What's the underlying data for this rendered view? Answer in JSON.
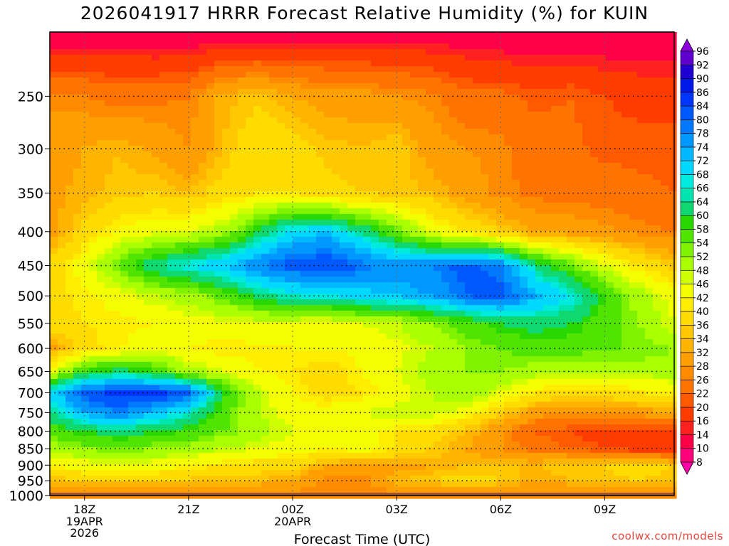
{
  "title": "2026041917 HRRR Forecast Relative Humidity (%) for KUIN",
  "credit": "coolwx.com/models",
  "chart_data": {
    "type": "heatmap",
    "title": "2026041917 HRRR Forecast Relative Humidity (%) for KUIN",
    "xlabel": "Forecast Time (UTC)",
    "ylabel": "",
    "x_hours": [
      17,
      18,
      19,
      20,
      21,
      22,
      23,
      0,
      1,
      2,
      3,
      4,
      5,
      6,
      7,
      8,
      9,
      10,
      11
    ],
    "x_ticks": [
      {
        "hour": 18,
        "label": "18Z",
        "sub": [
          "19APR",
          "2026"
        ]
      },
      {
        "hour": 21,
        "label": "21Z",
        "sub": []
      },
      {
        "hour": 24,
        "label": "00Z",
        "sub": [
          "20APR"
        ]
      },
      {
        "hour": 27,
        "label": "03Z",
        "sub": []
      },
      {
        "hour": 30,
        "label": "06Z",
        "sub": []
      },
      {
        "hour": 33,
        "label": "09Z",
        "sub": []
      }
    ],
    "xlim": [
      17,
      35
    ],
    "y_levels": [
      200,
      250,
      300,
      350,
      400,
      450,
      500,
      550,
      600,
      650,
      700,
      750,
      800,
      850,
      900,
      950,
      1000
    ],
    "y_ticks": [
      250,
      300,
      350,
      400,
      450,
      500,
      550,
      600,
      650,
      700,
      750,
      800,
      850,
      900,
      950,
      1000
    ],
    "ylim": [
      200,
      1000
    ],
    "y_scale": "log",
    "grid": true,
    "ground_level_hpa": 990,
    "values": [
      [
        10,
        10,
        11,
        10,
        10,
        10,
        10,
        10,
        11,
        11,
        11,
        11,
        11,
        10,
        10,
        10,
        10,
        10,
        10
      ],
      [
        27,
        26,
        24,
        25,
        26,
        33,
        35,
        32,
        30,
        30,
        28,
        27,
        23,
        23,
        21,
        22,
        20,
        19,
        19
      ],
      [
        30,
        32,
        34,
        31,
        28,
        34,
        40,
        38,
        35,
        34,
        36,
        30,
        28,
        27,
        24,
        23,
        21,
        21,
        21
      ],
      [
        31,
        33,
        35,
        36,
        34,
        38,
        40,
        40,
        37,
        36,
        35,
        34,
        30,
        27,
        25,
        25,
        24,
        23,
        22
      ],
      [
        30,
        37,
        43,
        45,
        46,
        50,
        60,
        70,
        72,
        64,
        55,
        45,
        40,
        36,
        31,
        30,
        29,
        27,
        26
      ],
      [
        37,
        45,
        55,
        64,
        68,
        72,
        78,
        82,
        84,
        80,
        76,
        78,
        82,
        78,
        64,
        55,
        46,
        40,
        35
      ],
      [
        38,
        41,
        44,
        48,
        50,
        55,
        62,
        66,
        68,
        70,
        72,
        74,
        80,
        82,
        74,
        68,
        58,
        50,
        44
      ],
      [
        38,
        40,
        41,
        42,
        44,
        45,
        46,
        45,
        44,
        46,
        48,
        52,
        56,
        60,
        62,
        60,
        56,
        52,
        46
      ],
      [
        30,
        38,
        42,
        44,
        42,
        40,
        41,
        42,
        42,
        43,
        45,
        48,
        52,
        54,
        56,
        56,
        54,
        54,
        52
      ],
      [
        45,
        58,
        62,
        58,
        50,
        46,
        42,
        40,
        38,
        42,
        46,
        50,
        52,
        52,
        50,
        50,
        50,
        50,
        50
      ],
      [
        70,
        82,
        86,
        86,
        82,
        60,
        48,
        42,
        38,
        40,
        44,
        48,
        52,
        46,
        40,
        38,
        38,
        40,
        42
      ],
      [
        62,
        74,
        78,
        72,
        66,
        56,
        48,
        44,
        44,
        46,
        48,
        48,
        44,
        36,
        30,
        28,
        30,
        30,
        32
      ],
      [
        56,
        60,
        62,
        60,
        58,
        54,
        50,
        46,
        44,
        44,
        40,
        38,
        34,
        28,
        22,
        20,
        18,
        18,
        18
      ],
      [
        50,
        52,
        54,
        52,
        50,
        48,
        46,
        44,
        42,
        44,
        40,
        36,
        32,
        28,
        24,
        22,
        20,
        18,
        18
      ],
      [
        42,
        44,
        46,
        44,
        42,
        40,
        38,
        38,
        32,
        30,
        30,
        32,
        34,
        34,
        34,
        36,
        36,
        38,
        36
      ],
      [
        34,
        36,
        36,
        36,
        35,
        34,
        34,
        32,
        26,
        26,
        34,
        36,
        38,
        36,
        32,
        34,
        35,
        36,
        34
      ],
      [
        27,
        26,
        26,
        26,
        26,
        26,
        26,
        26,
        26,
        26,
        26,
        26,
        26,
        26,
        26,
        26,
        26,
        26,
        26
      ]
    ],
    "colorbar_levels": [
      8,
      10,
      14,
      16,
      20,
      22,
      26,
      28,
      32,
      34,
      36,
      40,
      42,
      46,
      48,
      52,
      54,
      58,
      60,
      64,
      66,
      68,
      72,
      74,
      78,
      80,
      84,
      86,
      90,
      92,
      96
    ],
    "colorbar_labels": [
      "96",
      "92",
      "90",
      "86",
      "84",
      "80",
      "78",
      "74",
      "72",
      "68",
      "66",
      "64",
      "60",
      "58",
      "54",
      "52",
      "48",
      "46",
      "42",
      "40",
      "36",
      "34",
      "32",
      "28",
      "26",
      "22",
      "20",
      "16",
      "14",
      "10",
      "8"
    ],
    "palette": [
      "#ff00a8",
      "#ff0078",
      "#ff0048",
      "#ff2020",
      "#ff3c00",
      "#ff5a00",
      "#ff7400",
      "#ff8c00",
      "#ffa000",
      "#ffb400",
      "#ffc800",
      "#ffdc00",
      "#ffee00",
      "#f4ff00",
      "#d0ff00",
      "#aaff00",
      "#80f200",
      "#50e400",
      "#28d800",
      "#10d870",
      "#00e4b0",
      "#00eade",
      "#00d8ff",
      "#00b8ff",
      "#0098ff",
      "#0078ff",
      "#0058ff",
      "#0034ff",
      "#0018e8",
      "#2000d0",
      "#6000d0",
      "#8c00e0"
    ],
    "ground_color": "#a0522d"
  }
}
